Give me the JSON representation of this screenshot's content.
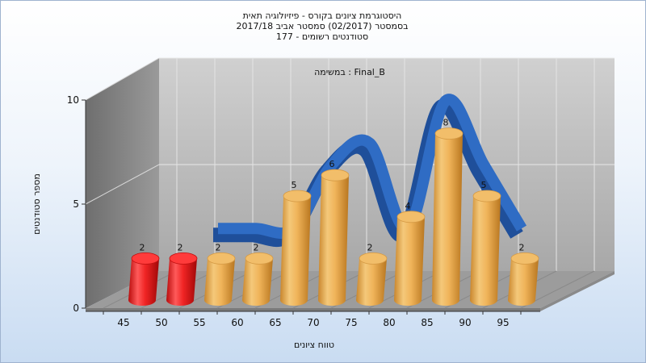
{
  "chart_data": {
    "type": "bar",
    "title": [
      "היסטוגרמת ציונים בקורס - פיזיולוגיה תאית",
      "בסמסטר  (02/2017)  סמסטר אביב 2017/18",
      "סטודנטים רשומים - 177"
    ],
    "annotation": "במשימה : Final_B",
    "xlabel": "טווח ציונים",
    "ylabel": "מספר סטודנטים",
    "x_ticks": [
      "45",
      "50",
      "55",
      "60",
      "65",
      "70",
      "75",
      "80",
      "85",
      "90",
      "95"
    ],
    "y_ticks": [
      "0",
      "5",
      "10"
    ],
    "ylim": [
      0,
      10
    ],
    "grid": true,
    "series": [
      {
        "type": "bar",
        "values": [
          2,
          2,
          2,
          2,
          5,
          6,
          2,
          4,
          8,
          5,
          2
        ],
        "colors": [
          "#e01818",
          "#e01818",
          "#e8a94a",
          "#e8a94a",
          "#e8a94a",
          "#e8a94a",
          "#e8a94a",
          "#e8a94a",
          "#e8a94a",
          "#e8a94a",
          "#e8a94a"
        ]
      },
      {
        "type": "line",
        "values": [
          2,
          2,
          2,
          5,
          6,
          2,
          8,
          5,
          2
        ],
        "color": "#2f6cc4"
      }
    ]
  }
}
